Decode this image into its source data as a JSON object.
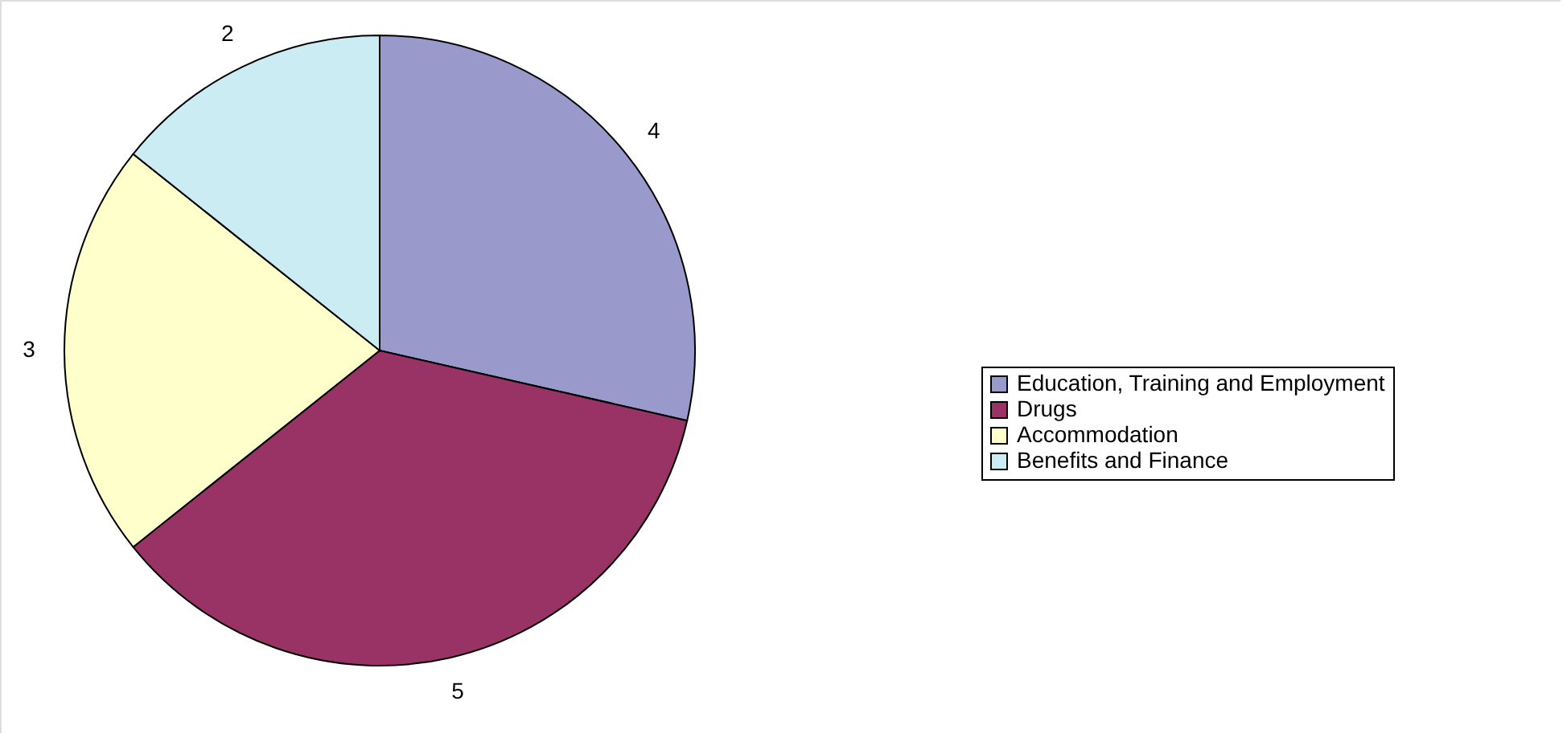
{
  "chart_data": {
    "type": "pie",
    "categories": [
      "Education, Training and Employment",
      "Drugs",
      "Accommodation",
      "Benefits and Finance"
    ],
    "values": [
      4,
      5,
      3,
      2
    ],
    "colors": [
      "#9999cc",
      "#993366",
      "#ffffcc",
      "#ccecf4"
    ],
    "data_labels": true,
    "legend": "right"
  }
}
